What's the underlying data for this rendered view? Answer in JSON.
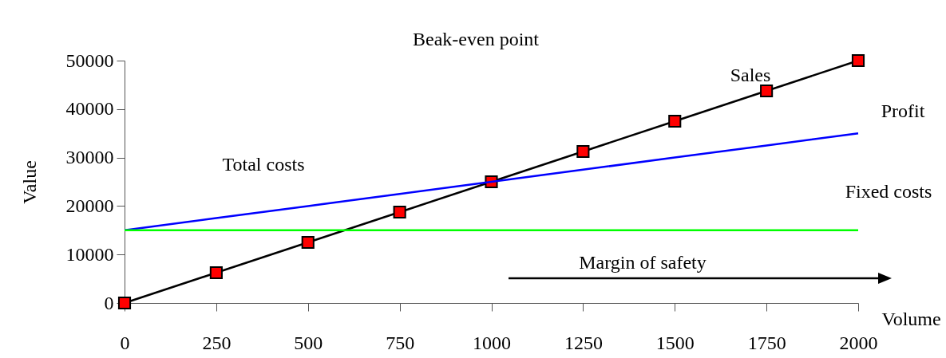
{
  "chart_data": {
    "type": "line",
    "xlabel": "Volume",
    "ylabel": "Value",
    "x": [
      0,
      250,
      500,
      750,
      1000,
      1250,
      1500,
      1750,
      2000
    ],
    "xlim": [
      0,
      2000
    ],
    "xticks": [
      0,
      250,
      500,
      750,
      1000,
      1250,
      1500,
      1750,
      2000
    ],
    "ylim": [
      0,
      50000
    ],
    "yticks": [
      0,
      10000,
      20000,
      30000,
      40000,
      50000
    ],
    "grid": false,
    "annotations": [
      "Beak-even point",
      "Sales",
      "Profit",
      "Total costs",
      "Fixed costs",
      "Margin of safety"
    ],
    "series": [
      {
        "color": "#000000",
        "marker": "square",
        "values": [
          0,
          6250,
          12500,
          18750,
          25000,
          31250,
          37500,
          43750,
          50000
        ]
      },
      {
        "color": "#0000ff",
        "marker": "none",
        "values": [
          15000,
          17500,
          20000,
          22500,
          25000,
          27500,
          30000,
          32500,
          35000
        ]
      },
      {
        "color": "#00ff00",
        "marker": "none",
        "values": [
          15000,
          15000,
          15000,
          15000,
          15000,
          15000,
          15000,
          15000,
          15000
        ]
      }
    ]
  }
}
